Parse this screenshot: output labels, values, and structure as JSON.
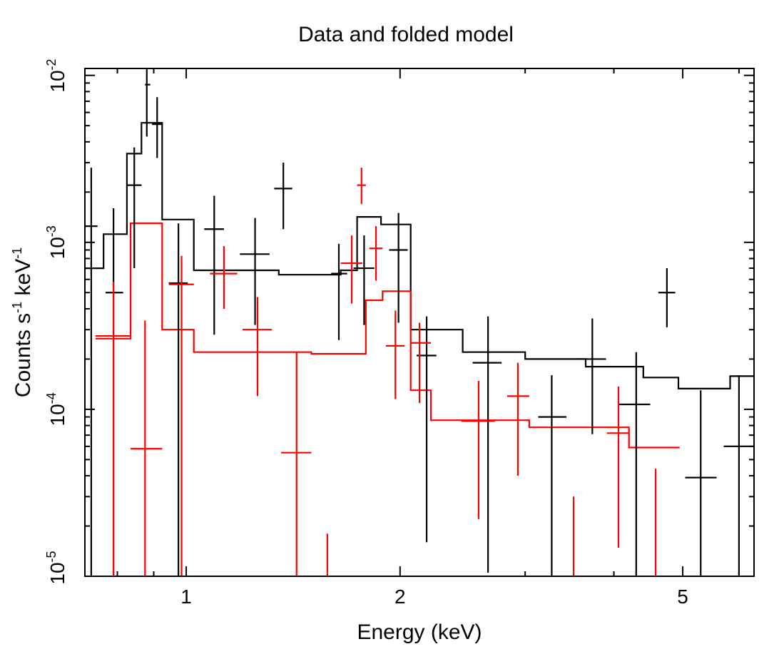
{
  "chart_data": {
    "type": "line",
    "title": "Data and folded model",
    "xlabel": "Energy (keV)",
    "ylabel": {
      "base": "Counts s",
      "exp1": "-1",
      "mid": " keV",
      "exp2": "-1"
    },
    "x_scale": "log",
    "y_scale": "log",
    "xlim": [
      0.72,
      6.3
    ],
    "ylim": [
      1e-05,
      0.011
    ],
    "x_ticks": [
      {
        "value": 1,
        "label": "1"
      },
      {
        "value": 2,
        "label": "2"
      },
      {
        "value": 5,
        "label": "5"
      }
    ],
    "y_ticks": [
      {
        "value": 0.01,
        "base": "10",
        "exp": "-2"
      },
      {
        "value": 0.001,
        "base": "10",
        "exp": "-3"
      },
      {
        "value": 0.0001,
        "base": "10",
        "exp": "-4"
      },
      {
        "value": 1e-05,
        "base": "10",
        "exp": "-5"
      }
    ],
    "series": [
      {
        "name": "black data",
        "color": "#000000",
        "points": [
          {
            "x": 0.735,
            "xlo": 0.72,
            "xhi": 0.75,
            "y": 0.00125,
            "ylo": 1e-05,
            "yhi": 0.0028
          },
          {
            "x": 0.79,
            "xlo": 0.77,
            "xhi": 0.815,
            "y": 0.0005,
            "ylo": 1e-05,
            "yhi": 0.0016
          },
          {
            "x": 0.845,
            "xlo": 0.825,
            "xhi": 0.865,
            "y": 0.0022,
            "ylo": 0.0007,
            "yhi": 0.0037
          },
          {
            "x": 0.88,
            "xlo": 0.875,
            "xhi": 0.89,
            "y": 0.0088,
            "ylo": 0.0043,
            "yhi": 0.0115
          },
          {
            "x": 0.91,
            "xlo": 0.895,
            "xhi": 0.925,
            "y": 0.0051,
            "ylo": 0.0032,
            "yhi": 0.0074
          },
          {
            "x": 0.975,
            "xlo": 0.945,
            "xhi": 1.005,
            "y": 0.00057,
            "ylo": 1e-05,
            "yhi": 0.0013
          },
          {
            "x": 1.095,
            "xlo": 1.06,
            "xhi": 1.13,
            "y": 0.0012,
            "ylo": 0.00028,
            "yhi": 0.0019
          },
          {
            "x": 1.25,
            "xlo": 1.19,
            "xhi": 1.31,
            "y": 0.00085,
            "ylo": 0.00032,
            "yhi": 0.0014
          },
          {
            "x": 1.37,
            "xlo": 1.33,
            "xhi": 1.41,
            "y": 0.0021,
            "ylo": 0.0012,
            "yhi": 0.003
          },
          {
            "x": 1.64,
            "xlo": 1.6,
            "xhi": 1.685,
            "y": 0.00065,
            "ylo": 0.00026,
            "yhi": 0.00098
          },
          {
            "x": 1.78,
            "xlo": 1.72,
            "xhi": 1.84,
            "y": 0.0007,
            "ylo": 0.00032,
            "yhi": 0.0011
          },
          {
            "x": 1.99,
            "xlo": 1.93,
            "xhi": 2.05,
            "y": 0.0009,
            "ylo": 0.00033,
            "yhi": 0.0015
          },
          {
            "x": 2.18,
            "xlo": 2.11,
            "xhi": 2.25,
            "y": 0.00021,
            "ylo": 1.6e-05,
            "yhi": 0.00036
          },
          {
            "x": 2.66,
            "xlo": 2.53,
            "xhi": 2.78,
            "y": 0.00019,
            "ylo": 1.05e-05,
            "yhi": 0.00036
          },
          {
            "x": 3.27,
            "xlo": 3.13,
            "xhi": 3.43,
            "y": 9e-05,
            "ylo": 1e-05,
            "yhi": 0.00016
          },
          {
            "x": 3.73,
            "xlo": 3.55,
            "xhi": 3.9,
            "y": 0.0002,
            "ylo": 7.1e-05,
            "yhi": 0.00035
          },
          {
            "x": 4.3,
            "xlo": 4.07,
            "xhi": 4.5,
            "y": 0.000107,
            "ylo": 1e-05,
            "yhi": 0.00022
          },
          {
            "x": 4.75,
            "xlo": 4.62,
            "xhi": 4.88,
            "y": 0.0005,
            "ylo": 0.00031,
            "yhi": 0.0007
          },
          {
            "x": 5.3,
            "xlo": 5.04,
            "xhi": 5.58,
            "y": 3.9e-05,
            "ylo": 1e-05,
            "yhi": 0.00013
          },
          {
            "x": 6.0,
            "xlo": 5.71,
            "xhi": 6.3,
            "y": 6e-05,
            "ylo": 1e-05,
            "yhi": 0.00016
          }
        ]
      },
      {
        "name": "red data",
        "color": "#ff0000",
        "points": [
          {
            "x": 0.79,
            "xlo": 0.745,
            "xhi": 0.835,
            "y": 0.000275,
            "ylo": 1e-05,
            "yhi": 0.00058
          },
          {
            "x": 0.875,
            "xlo": 0.835,
            "xhi": 0.925,
            "y": 5.8e-05,
            "ylo": 1e-05,
            "yhi": 0.00034
          },
          {
            "x": 0.985,
            "xlo": 0.945,
            "xhi": 1.025,
            "y": 0.00056,
            "ylo": 1e-05,
            "yhi": 0.00083
          },
          {
            "x": 1.13,
            "xlo": 1.08,
            "xhi": 1.18,
            "y": 0.00065,
            "ylo": 0.0004,
            "yhi": 0.00095
          },
          {
            "x": 1.26,
            "xlo": 1.2,
            "xhi": 1.32,
            "y": 0.0003,
            "ylo": 0.00012,
            "yhi": 0.00047
          },
          {
            "x": 1.43,
            "xlo": 1.36,
            "xhi": 1.5,
            "y": 5.5e-05,
            "ylo": 1e-05,
            "yhi": 0.00022
          },
          {
            "x": 1.58,
            "xlo": 1.58,
            "xhi": 1.58,
            "y": 1.05e-05,
            "ylo": 1e-05,
            "yhi": 1.8e-05
          },
          {
            "x": 1.71,
            "xlo": 1.65,
            "xhi": 1.77,
            "y": 0.00075,
            "ylo": 0.00043,
            "yhi": 0.0011
          },
          {
            "x": 1.765,
            "xlo": 1.74,
            "xhi": 1.79,
            "y": 0.0022,
            "ylo": 0.0017,
            "yhi": 0.0028
          },
          {
            "x": 1.85,
            "xlo": 1.81,
            "xhi": 1.89,
            "y": 0.00092,
            "ylo": 0.00059,
            "yhi": 0.00125
          },
          {
            "x": 1.97,
            "xlo": 1.91,
            "xhi": 2.03,
            "y": 0.00024,
            "ylo": 0.000115,
            "yhi": 0.00039
          },
          {
            "x": 2.13,
            "xlo": 2.07,
            "xhi": 2.21,
            "y": 0.00025,
            "ylo": 0.000109,
            "yhi": 0.00033
          },
          {
            "x": 2.58,
            "xlo": 2.44,
            "xhi": 2.72,
            "y": 8.5e-05,
            "ylo": 2.2e-05,
            "yhi": 0.000148
          },
          {
            "x": 2.93,
            "xlo": 2.83,
            "xhi": 3.04,
            "y": 0.00012,
            "ylo": 4e-05,
            "yhi": 0.00019
          },
          {
            "x": 3.51,
            "xlo": 3.51,
            "xhi": 3.51,
            "y": 1.05e-05,
            "ylo": 1e-05,
            "yhi": 3e-05
          },
          {
            "x": 4.06,
            "xlo": 3.91,
            "xhi": 4.2,
            "y": 7.2e-05,
            "ylo": 1.48e-05,
            "yhi": 0.000137
          },
          {
            "x": 4.58,
            "xlo": 4.58,
            "xhi": 4.58,
            "y": 1.05e-05,
            "ylo": 1e-05,
            "yhi": 4.4e-05
          }
        ]
      },
      {
        "name": "black model",
        "color": "#000000",
        "kind": "step",
        "steps": [
          {
            "x0": 0.72,
            "x1": 0.765,
            "y": 0.0007
          },
          {
            "x0": 0.765,
            "x1": 0.825,
            "y": 0.00112
          },
          {
            "x0": 0.825,
            "x1": 0.865,
            "y": 0.0034
          },
          {
            "x0": 0.865,
            "x1": 0.925,
            "y": 0.0052
          },
          {
            "x0": 0.925,
            "x1": 1.025,
            "y": 0.00137
          },
          {
            "x0": 1.025,
            "x1": 1.35,
            "y": 0.00068
          },
          {
            "x0": 1.35,
            "x1": 1.65,
            "y": 0.00064
          },
          {
            "x0": 1.65,
            "x1": 1.74,
            "y": 0.00068
          },
          {
            "x0": 1.74,
            "x1": 1.88,
            "y": 0.00142
          },
          {
            "x0": 1.88,
            "x1": 2.07,
            "y": 0.00128
          },
          {
            "x0": 2.07,
            "x1": 2.45,
            "y": 0.0003
          },
          {
            "x0": 2.45,
            "x1": 3.0,
            "y": 0.00022
          },
          {
            "x0": 3.0,
            "x1": 3.65,
            "y": 0.0002
          },
          {
            "x0": 3.65,
            "x1": 4.4,
            "y": 0.00018
          },
          {
            "x0": 4.4,
            "x1": 4.93,
            "y": 0.000155
          },
          {
            "x0": 4.93,
            "x1": 5.83,
            "y": 0.000133
          },
          {
            "x0": 5.83,
            "x1": 6.3,
            "y": 0.000158
          }
        ]
      },
      {
        "name": "red model",
        "color": "#ff0000",
        "kind": "step",
        "steps": [
          {
            "x0": 0.745,
            "x1": 0.835,
            "y": 0.000265
          },
          {
            "x0": 0.835,
            "x1": 0.925,
            "y": 0.0013
          },
          {
            "x0": 0.925,
            "x1": 1.025,
            "y": 0.0003
          },
          {
            "x0": 1.025,
            "x1": 1.5,
            "y": 0.00022
          },
          {
            "x0": 1.5,
            "x1": 1.79,
            "y": 0.000215
          },
          {
            "x0": 1.79,
            "x1": 1.89,
            "y": 0.00045
          },
          {
            "x0": 1.89,
            "x1": 2.07,
            "y": 0.00051
          },
          {
            "x0": 2.07,
            "x1": 2.21,
            "y": 0.00013
          },
          {
            "x0": 2.21,
            "x1": 3.04,
            "y": 8.6e-05
          },
          {
            "x0": 3.04,
            "x1": 4.2,
            "y": 7.8e-05
          },
          {
            "x0": 4.2,
            "x1": 4.95,
            "y": 5.9e-05
          }
        ]
      }
    ]
  }
}
